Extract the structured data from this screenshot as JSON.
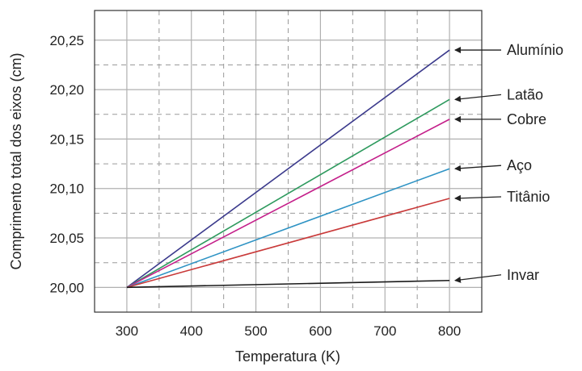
{
  "chart_data": {
    "type": "line",
    "title": "",
    "xlabel": "Temperatura (K)",
    "ylabel": "Comprimento total dos eixos (cm)",
    "xlim": [
      250,
      850
    ],
    "ylim": [
      19.975,
      20.28
    ],
    "x_ticks": [
      300,
      400,
      500,
      600,
      700,
      800
    ],
    "x_tick_labels": [
      "300",
      "400",
      "500",
      "600",
      "700",
      "800"
    ],
    "y_ticks": [
      20.0,
      20.05,
      20.1,
      20.15,
      20.2,
      20.25
    ],
    "y_tick_labels": [
      "20,00",
      "20,05",
      "20,10",
      "20,15",
      "20,20",
      "20,25"
    ],
    "grid": true,
    "legend": "annotations with arrows on the right",
    "series": [
      {
        "name": "Alumínio",
        "color": "#3b3a8c",
        "x": [
          300,
          800
        ],
        "y": [
          20.0,
          20.24
        ]
      },
      {
        "name": "Latão",
        "color": "#2e9a5e",
        "x": [
          300,
          800
        ],
        "y": [
          20.0,
          20.19
        ]
      },
      {
        "name": "Cobre",
        "color": "#c41f8a",
        "x": [
          300,
          800
        ],
        "y": [
          20.0,
          20.17
        ]
      },
      {
        "name": "Aço",
        "color": "#2e93c4",
        "x": [
          300,
          800
        ],
        "y": [
          20.0,
          20.12
        ]
      },
      {
        "name": "Titânio",
        "color": "#c93a3a",
        "x": [
          300,
          800
        ],
        "y": [
          20.0,
          20.09
        ]
      },
      {
        "name": "Invar",
        "color": "#1a1a1a",
        "x": [
          300,
          800
        ],
        "y": [
          20.0,
          20.007
        ]
      }
    ]
  }
}
